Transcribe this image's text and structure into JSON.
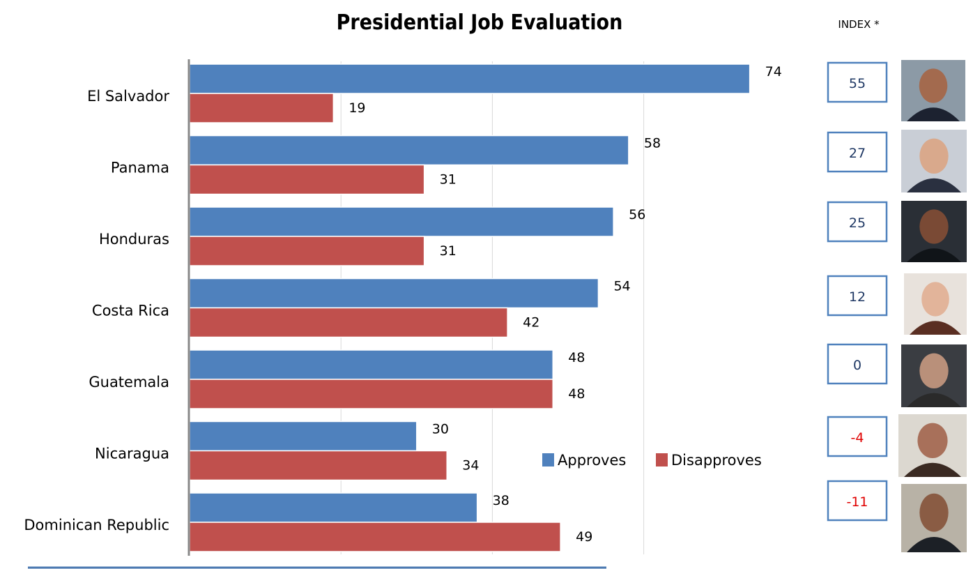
{
  "chart_data": {
    "type": "bar",
    "orientation": "horizontal",
    "title": "Presidential Job Evaluation",
    "categories": [
      "El Salvador",
      "Panama",
      "Honduras",
      "Costa Rica",
      "Guatemala",
      "Nicaragua",
      "Dominican Republic"
    ],
    "series": [
      {
        "name": "Approves",
        "values": [
          74,
          58,
          56,
          54,
          48,
          30,
          38
        ]
      },
      {
        "name": "Disapproves",
        "values": [
          19,
          31,
          31,
          42,
          48,
          34,
          49
        ]
      }
    ],
    "xlim": [
      0,
      80
    ],
    "grid": true,
    "legend_position": "center-right",
    "index": {
      "header": "INDEX *",
      "values": [
        "55",
        "27",
        "25",
        "12",
        "0",
        "-4",
        "-11"
      ]
    }
  },
  "colors": {
    "approves": "#4f81bd",
    "disapproves": "#c0504d",
    "negative_index": "#e00000",
    "positive_index": "#1f3864",
    "index_box_border": "#4f81bd"
  }
}
